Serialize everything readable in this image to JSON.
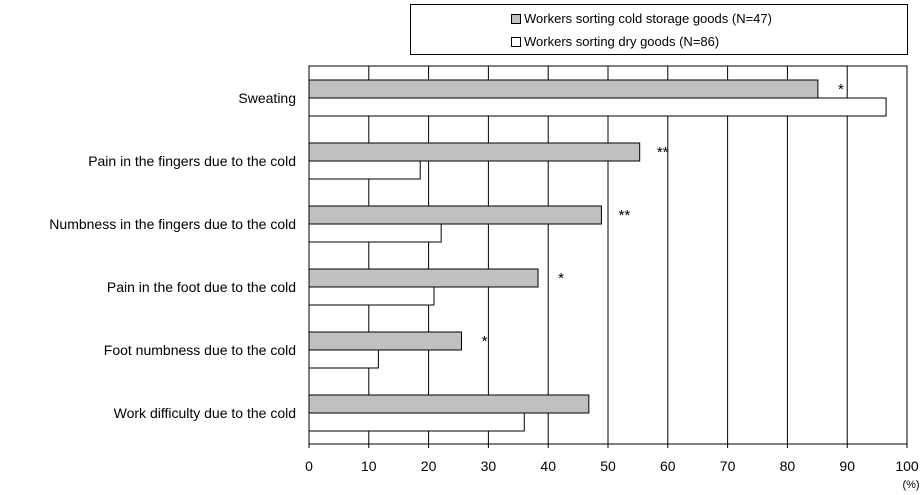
{
  "chart_data": {
    "type": "bar",
    "orientation": "horizontal",
    "categories": [
      "Sweating",
      "Pain in the fingers due to the cold",
      "Numbness in the fingers due to the cold",
      "Pain in the foot due to the cold",
      "Foot numbness due to the cold",
      "Work difficulty due to the cold"
    ],
    "series": [
      {
        "name": "Workers sorting cold storage goods (N=47)",
        "values": [
          85.1,
          55.3,
          48.9,
          38.3,
          25.5,
          46.8
        ],
        "color": "#c0c0c0"
      },
      {
        "name": "Workers sorting dry goods (N=86)",
        "values": [
          96.5,
          18.6,
          22.1,
          20.9,
          11.6,
          36.0
        ],
        "color": "#ffffff"
      }
    ],
    "significance": [
      "*",
      "**",
      "**",
      "*",
      "*",
      ""
    ],
    "xlim": [
      0,
      100
    ],
    "xticks": [
      "0",
      "10",
      "20",
      "30",
      "40",
      "50",
      "60",
      "70",
      "80",
      "90",
      "100"
    ],
    "xunit": "(%)",
    "grid": true,
    "legend_position": "top-right"
  }
}
